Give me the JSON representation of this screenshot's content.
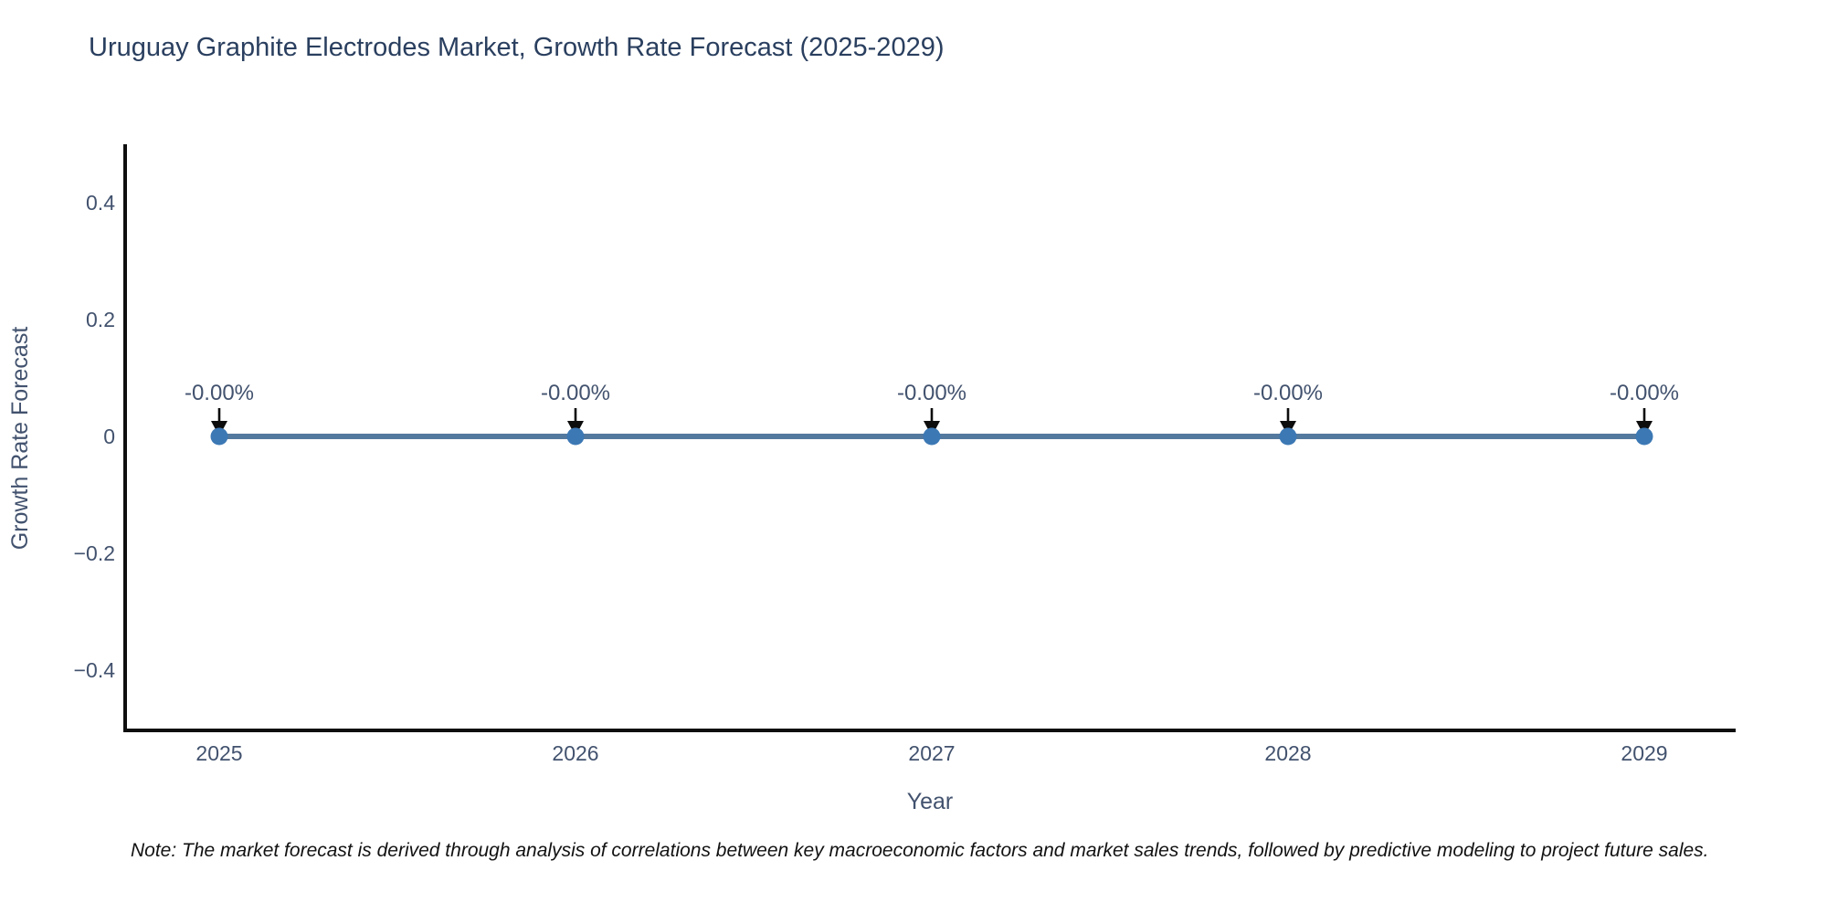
{
  "header": {
    "title": "Uruguay Graphite Electrodes Market, Growth Rate Forecast (2025-2029)"
  },
  "footnote": {
    "text": "Note: The market forecast is derived through analysis of correlations between key macroeconomic factors and market sales trends, followed by predictive modeling to project future sales."
  },
  "chart_data": {
    "type": "line",
    "title": "Uruguay Graphite Electrodes Market, Growth Rate Forecast (2025-2029)",
    "xlabel": "Year",
    "ylabel": "Growth Rate Forecast",
    "categories": [
      "2025",
      "2026",
      "2027",
      "2028",
      "2029"
    ],
    "series": [
      {
        "name": "Growth Rate Forecast",
        "values": [
          0,
          0,
          0,
          0,
          0
        ],
        "point_labels": [
          "-0.00%",
          "-0.00%",
          "-0.00%",
          "-0.00%",
          "-0.00%"
        ]
      }
    ],
    "ytick_values": [
      0.4,
      0.2,
      0,
      -0.2,
      -0.4
    ],
    "ytick_labels": [
      "0.4",
      "0.2",
      "0",
      "−0.2",
      "−0.4"
    ],
    "ylim": [
      -0.5,
      0.5
    ],
    "grid": false,
    "legend": "none",
    "colors": {
      "line": "#54799e",
      "marker": "#3c78b4",
      "arrow": "#0d0d0d",
      "axis_line": "#0e0e0e",
      "title_text": "#2a3f5f",
      "axis_text": "#42526e",
      "note_text": "#121212"
    }
  }
}
